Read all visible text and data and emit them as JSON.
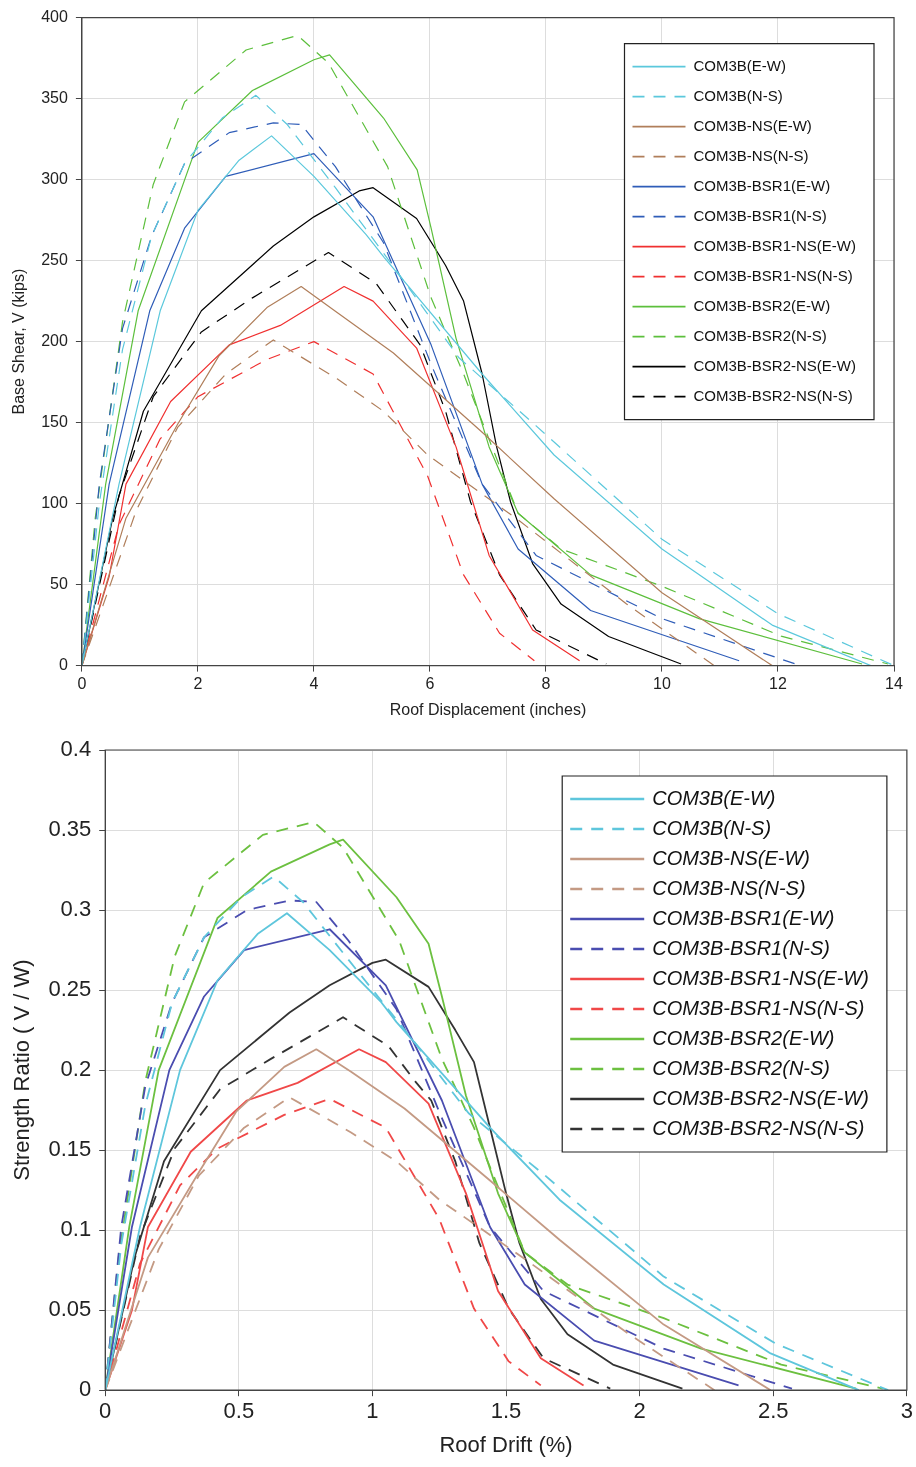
{
  "chart_data": [
    {
      "type": "line",
      "xlabel": "Roof Displacement (inches)",
      "ylabel": "Base Shear, V (kips)",
      "xlim": [
        0,
        14
      ],
      "xticks": [
        0,
        2,
        4,
        6,
        8,
        10,
        12,
        14
      ],
      "ylim": [
        0,
        400
      ],
      "yticks": [
        0,
        50,
        100,
        150,
        200,
        250,
        300,
        350,
        400
      ],
      "grid": true,
      "legend": "top right",
      "series": [
        {
          "name": "COM3B(E-W)",
          "color": "#5bc8dc",
          "line_style": "solid",
          "x": [
            0,
            0.64,
            1.35,
            2.0,
            2.71,
            3.27,
            4.0,
            4.9,
            5.21,
            6.9,
            8.14,
            10.0,
            11.9,
            13.6
          ],
          "values": [
            0,
            112,
            219,
            281,
            312,
            327,
            302,
            266,
            252,
            180,
            130,
            72,
            25,
            0
          ]
        },
        {
          "name": "COM3B(N-S)",
          "color": "#5bc8dc",
          "line_style": "dashed",
          "x": [
            0,
            0.3,
            0.7,
            1.2,
            1.77,
            2.42,
            3.0,
            3.54,
            4.37,
            5.5,
            6.5,
            7.83,
            10.0,
            12.0,
            14.0
          ],
          "values": [
            0,
            100,
            195,
            265,
            310,
            338,
            352,
            334,
            295,
            240,
            190,
            148,
            78,
            32,
            0
          ]
        },
        {
          "name": "COM3B-NS(E-W)",
          "color": "#b07e5a",
          "line_style": "solid",
          "x": [
            0,
            0.76,
            1.65,
            2.36,
            3.19,
            3.78,
            4.4,
            5.37,
            6.9,
            8.14,
            10.0,
            11.9
          ],
          "values": [
            0,
            91,
            149,
            191,
            221,
            234,
            218,
            193,
            144,
            103,
            45,
            0
          ]
        },
        {
          "name": "COM3B-NS(N-S)",
          "color": "#b07e5a",
          "line_style": "dashed",
          "x": [
            0,
            0.94,
            1.65,
            2.48,
            3.3,
            4.4,
            5.2,
            5.96,
            7.52,
            9.39,
            10.9
          ],
          "values": [
            0,
            96,
            147,
            180,
            201,
            177,
            157,
            130,
            90,
            38,
            0
          ]
        },
        {
          "name": "COM3B-BSR1(E-W)",
          "color": "#2f5db8",
          "line_style": "solid",
          "x": [
            0,
            0.47,
            1.17,
            1.77,
            2.48,
            4.0,
            5.02,
            6.02,
            6.9,
            7.52,
            8.77,
            11.33
          ],
          "values": [
            0,
            112,
            219,
            270,
            302,
            316,
            277,
            198,
            112,
            72,
            34,
            3
          ]
        },
        {
          "name": "COM3B-BSR1(N-S)",
          "color": "#2f5db8",
          "line_style": "dashed",
          "x": [
            0,
            0.3,
            0.7,
            1.2,
            1.77,
            2.54,
            3.3,
            3.78,
            4.37,
            5.2,
            6.02,
            6.9,
            7.83,
            10.0,
            12.3
          ],
          "values": [
            0,
            112,
            208,
            265,
            310,
            329,
            335,
            334,
            308,
            261,
            186,
            112,
            68,
            29,
            1
          ]
        },
        {
          "name": "COM3B-BSR1-NS(E-W)",
          "color": "#f03030",
          "line_style": "solid",
          "x": [
            0,
            0.47,
            0.76,
            1.53,
            2.54,
            3.42,
            4.52,
            5.02,
            5.77,
            6.45,
            7.02,
            7.77,
            8.58
          ],
          "values": [
            0,
            55,
            112,
            163,
            198,
            210,
            234,
            225,
            196,
            135,
            68,
            22,
            3
          ]
        },
        {
          "name": "COM3B-BSR1-NS(N-S)",
          "color": "#f03030",
          "line_style": "dashed",
          "x": [
            0,
            0.64,
            1.35,
            2.0,
            3.19,
            4.0,
            5.02,
            5.96,
            6.58,
            7.2,
            7.8
          ],
          "values": [
            0,
            87,
            140,
            166,
            189,
            200,
            180,
            117,
            56,
            20,
            3
          ]
        },
        {
          "name": "COM3B-BSR2(E-W)",
          "color": "#5cbf3c",
          "line_style": "solid",
          "x": [
            0,
            0.41,
            0.97,
            2.0,
            2.94,
            4.0,
            4.27,
            5.2,
            5.78,
            6.02,
            6.45,
            7.02,
            7.52,
            8.77,
            10.64,
            13.45
          ],
          "values": [
            0,
            112,
            219,
            323,
            355,
            374,
            377,
            338,
            306,
            270,
            202,
            135,
            94,
            56,
            29,
            1
          ]
        },
        {
          "name": "COM3B-BSR2(N-S)",
          "color": "#5cbf3c",
          "line_style": "dashed",
          "x": [
            0,
            0.23,
            0.7,
            1.23,
            1.77,
            2.83,
            3.72,
            4.25,
            5.27,
            6.02,
            6.58,
            7.07,
            7.52,
            8.26,
            10.0,
            12.07,
            13.9
          ],
          "values": [
            0,
            91,
            212,
            297,
            348,
            380,
            389,
            372,
            308,
            227,
            180,
            135,
            94,
            72,
            49,
            18,
            1
          ]
        },
        {
          "name": "COM3B-BSR2-NS(E-W)",
          "color": "#000000",
          "line_style": "solid",
          "x": [
            0,
            0.53,
            1.06,
            2.06,
            3.3,
            4.0,
            4.78,
            5.02,
            5.77,
            6.27,
            6.58,
            6.9,
            7.15,
            7.39,
            7.77,
            8.26,
            9.08,
            10.33
          ],
          "values": [
            0,
            91,
            157,
            219,
            259,
            277,
            293,
            295,
            276,
            247,
            225,
            180,
            135,
            101,
            63,
            38,
            18,
            1
          ]
        },
        {
          "name": "COM3B-BSR2-NS(N-S)",
          "color": "#000000",
          "line_style": "dashed",
          "x": [
            0,
            0.64,
            1.23,
            2.06,
            2.94,
            4.25,
            5.07,
            5.55,
            5.83,
            6.27,
            6.7,
            7.2,
            7.83,
            9.04
          ],
          "values": [
            0,
            105,
            166,
            206,
            227,
            255,
            236,
            212,
            198,
            157,
            101,
            56,
            22,
            1
          ]
        }
      ]
    },
    {
      "type": "line",
      "xlabel": "Roof Drift (%)",
      "ylabel": "Strength Ratio ( V / W)",
      "xlim": [
        0,
        3
      ],
      "xticks": [
        0,
        0.5,
        1,
        1.5,
        2,
        2.5,
        3
      ],
      "ylim": [
        0,
        0.4
      ],
      "yticks": [
        0,
        0.05,
        0.1,
        0.15,
        0.2,
        0.25,
        0.3,
        0.35,
        0.4
      ],
      "grid": true,
      "legend": "top right",
      "series": [
        {
          "name": "COM3B(E-W)",
          "color": "#5ec6dc",
          "line_style": "solid",
          "x": [
            0,
            0.13,
            0.28,
            0.42,
            0.57,
            0.68,
            0.84,
            1.03,
            1.09,
            1.44,
            1.7,
            2.09,
            2.49,
            2.82
          ],
          "values": [
            0,
            0.102,
            0.2,
            0.256,
            0.285,
            0.298,
            0.275,
            0.243,
            0.23,
            0.164,
            0.119,
            0.066,
            0.023,
            0
          ]
        },
        {
          "name": "COM3B(N-S)",
          "color": "#5ec6dc",
          "line_style": "dashed",
          "x": [
            0,
            0.06,
            0.15,
            0.25,
            0.37,
            0.51,
            0.63,
            0.74,
            0.91,
            1.15,
            1.36,
            1.64,
            2.09,
            2.51,
            2.93
          ],
          "values": [
            0,
            0.091,
            0.178,
            0.242,
            0.283,
            0.308,
            0.321,
            0.305,
            0.269,
            0.219,
            0.173,
            0.135,
            0.071,
            0.029,
            0
          ]
        },
        {
          "name": "COM3B-NS(E-W)",
          "color": "#c49a84",
          "line_style": "solid",
          "x": [
            0,
            0.16,
            0.35,
            0.49,
            0.67,
            0.79,
            0.92,
            1.12,
            1.44,
            1.7,
            2.09,
            2.49
          ],
          "values": [
            0,
            0.083,
            0.136,
            0.174,
            0.202,
            0.213,
            0.199,
            0.176,
            0.131,
            0.094,
            0.041,
            0
          ]
        },
        {
          "name": "COM3B-NS(N-S)",
          "color": "#c49a84",
          "line_style": "dashed",
          "x": [
            0,
            0.2,
            0.35,
            0.52,
            0.69,
            0.92,
            1.09,
            1.25,
            1.57,
            1.96,
            2.28
          ],
          "values": [
            0,
            0.088,
            0.134,
            0.164,
            0.183,
            0.161,
            0.143,
            0.119,
            0.082,
            0.035,
            0
          ]
        },
        {
          "name": "COM3B-BSR1(E-W)",
          "color": "#4a4db0",
          "line_style": "solid",
          "x": [
            0,
            0.1,
            0.24,
            0.37,
            0.52,
            0.84,
            1.05,
            1.26,
            1.44,
            1.57,
            1.83,
            2.37
          ],
          "values": [
            0,
            0.102,
            0.2,
            0.246,
            0.275,
            0.288,
            0.253,
            0.181,
            0.102,
            0.066,
            0.031,
            0.003
          ]
        },
        {
          "name": "COM3B-BSR1(N-S)",
          "color": "#4a4db0",
          "line_style": "dashed",
          "x": [
            0,
            0.06,
            0.15,
            0.25,
            0.37,
            0.53,
            0.69,
            0.79,
            0.91,
            1.09,
            1.26,
            1.44,
            1.64,
            2.09,
            2.57
          ],
          "values": [
            0,
            0.102,
            0.19,
            0.242,
            0.283,
            0.3,
            0.306,
            0.305,
            0.281,
            0.238,
            0.17,
            0.102,
            0.062,
            0.026,
            0.001
          ]
        },
        {
          "name": "COM3B-BSR1-NS(E-W)",
          "color": "#f04848",
          "line_style": "solid",
          "x": [
            0,
            0.1,
            0.16,
            0.32,
            0.53,
            0.72,
            0.95,
            1.05,
            1.21,
            1.35,
            1.47,
            1.63,
            1.79
          ],
          "values": [
            0,
            0.05,
            0.102,
            0.149,
            0.181,
            0.192,
            0.213,
            0.205,
            0.179,
            0.123,
            0.062,
            0.02,
            0.003
          ]
        },
        {
          "name": "COM3B-BSR1-NS(N-S)",
          "color": "#f04848",
          "line_style": "dashed",
          "x": [
            0,
            0.13,
            0.28,
            0.42,
            0.67,
            0.84,
            1.05,
            1.25,
            1.38,
            1.51,
            1.63
          ],
          "values": [
            0,
            0.079,
            0.128,
            0.151,
            0.172,
            0.182,
            0.164,
            0.107,
            0.051,
            0.018,
            0.003
          ]
        },
        {
          "name": "COM3B-BSR2(E-W)",
          "color": "#6cc040",
          "line_style": "solid",
          "x": [
            0,
            0.09,
            0.2,
            0.42,
            0.62,
            0.84,
            0.89,
            1.09,
            1.21,
            1.26,
            1.35,
            1.47,
            1.57,
            1.83,
            2.23,
            2.81
          ],
          "values": [
            0,
            0.102,
            0.2,
            0.295,
            0.324,
            0.341,
            0.344,
            0.308,
            0.279,
            0.246,
            0.184,
            0.123,
            0.086,
            0.051,
            0.026,
            0.001
          ]
        },
        {
          "name": "COM3B-BSR2(N-S)",
          "color": "#6cc040",
          "line_style": "dashed",
          "x": [
            0,
            0.05,
            0.15,
            0.26,
            0.37,
            0.59,
            0.78,
            0.89,
            1.1,
            1.26,
            1.38,
            1.48,
            1.57,
            1.73,
            2.09,
            2.53,
            2.91
          ],
          "values": [
            0,
            0.083,
            0.193,
            0.271,
            0.317,
            0.347,
            0.355,
            0.339,
            0.281,
            0.207,
            0.164,
            0.123,
            0.086,
            0.066,
            0.045,
            0.016,
            0.001
          ]
        },
        {
          "name": "COM3B-BSR2-NS(E-W)",
          "color": "#333333",
          "line_style": "solid",
          "x": [
            0,
            0.11,
            0.22,
            0.43,
            0.69,
            0.84,
            1.0,
            1.05,
            1.21,
            1.31,
            1.38,
            1.44,
            1.5,
            1.55,
            1.63,
            1.73,
            1.9,
            2.16
          ],
          "values": [
            0,
            0.083,
            0.143,
            0.2,
            0.236,
            0.253,
            0.267,
            0.269,
            0.252,
            0.225,
            0.205,
            0.164,
            0.123,
            0.092,
            0.057,
            0.035,
            0.016,
            0.001
          ]
        },
        {
          "name": "COM3B-BSR2-NS(N-S)",
          "color": "#333333",
          "line_style": "dashed",
          "x": [
            0,
            0.13,
            0.26,
            0.43,
            0.62,
            0.89,
            1.06,
            1.16,
            1.22,
            1.31,
            1.4,
            1.51,
            1.64,
            1.89
          ],
          "values": [
            0,
            0.096,
            0.151,
            0.188,
            0.207,
            0.233,
            0.215,
            0.193,
            0.181,
            0.143,
            0.092,
            0.051,
            0.02,
            0.001
          ]
        }
      ]
    }
  ]
}
